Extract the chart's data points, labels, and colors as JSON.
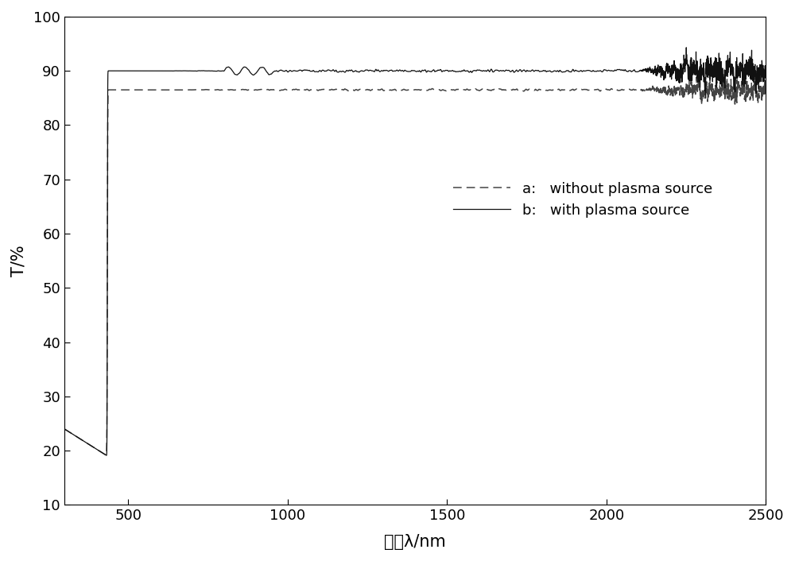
{
  "xlabel": "波长λ/nm",
  "ylabel": "T/%",
  "xlim": [
    300,
    2500
  ],
  "ylim": [
    10,
    100
  ],
  "xticks": [
    500,
    1000,
    1500,
    2000,
    2500
  ],
  "yticks": [
    10,
    20,
    30,
    40,
    50,
    60,
    70,
    80,
    90,
    100
  ],
  "legend_a": "a:   without plasma source",
  "legend_b": "b:   with plasma source",
  "background_color": "#ffffff",
  "label_fontsize": 15,
  "tick_fontsize": 13,
  "legend_fontsize": 13
}
